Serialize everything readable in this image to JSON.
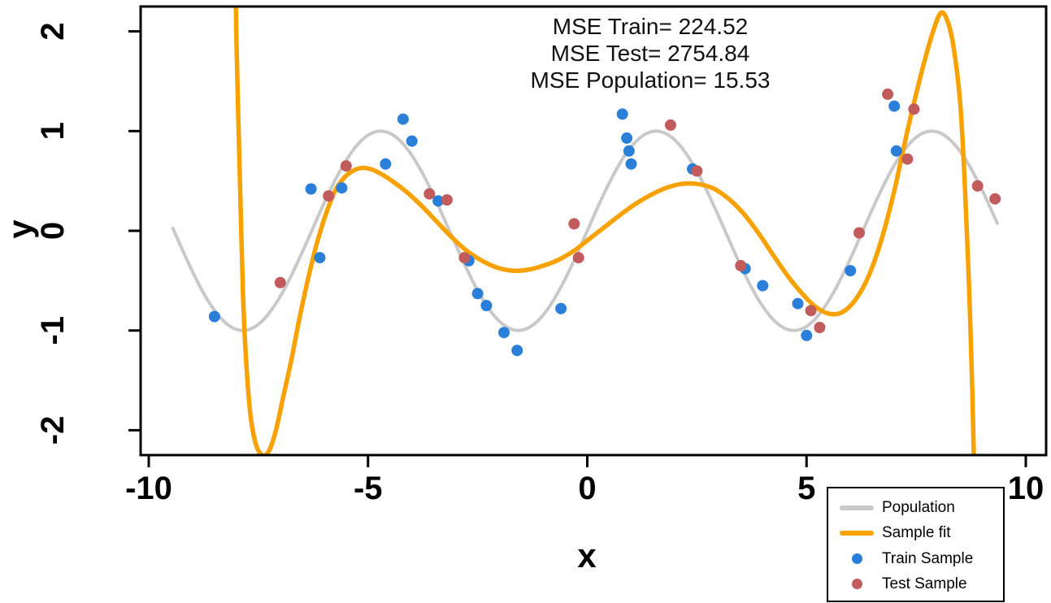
{
  "chart_data": {
    "type": "line+scatter",
    "title": "",
    "xlabel": "x",
    "ylabel": "y",
    "xlim": [
      -10,
      10
    ],
    "ylim": [
      -2.25,
      2.25
    ],
    "xticks": [
      -10,
      -5,
      0,
      5,
      10
    ],
    "yticks": [
      -2,
      -1,
      0,
      1,
      2
    ],
    "grid": false,
    "legend_position": "bottom-right",
    "annotations": [
      "MSE Train= 224.52",
      "MSE Test= 2754.84",
      "MSE Population= 15.53"
    ],
    "colors": {
      "population": "#c9c9c9",
      "sample_fit": "#f7a200",
      "train": "#2a7fd9",
      "test": "#c25b5b",
      "axis": "#000000"
    },
    "legend": [
      {
        "label": "Population",
        "swatch": "line",
        "color": "#c9c9c9"
      },
      {
        "label": "Sample fit",
        "swatch": "line",
        "color": "#f7a200"
      },
      {
        "label": "Train Sample",
        "swatch": "point",
        "color": "#2a7fd9"
      },
      {
        "label": "Test Sample",
        "swatch": "point",
        "color": "#c25b5b"
      }
    ],
    "series": [
      {
        "name": "Population",
        "kind": "line",
        "fn": "sin",
        "x_range": [
          -9.45,
          9.4
        ],
        "width": 4,
        "color": "#c9c9c9"
      },
      {
        "name": "Sample fit",
        "kind": "line",
        "width": 5.5,
        "color": "#f7a200",
        "points": [
          [
            -8.05,
            3.2
          ],
          [
            -8.0,
            1.9
          ],
          [
            -7.95,
            1.0
          ],
          [
            -7.9,
            0.15
          ],
          [
            -7.85,
            -0.65
          ],
          [
            -7.78,
            -1.3
          ],
          [
            -7.68,
            -1.85
          ],
          [
            -7.55,
            -2.15
          ],
          [
            -7.4,
            -2.25
          ],
          [
            -7.25,
            -2.2
          ],
          [
            -7.1,
            -2.0
          ],
          [
            -6.95,
            -1.7
          ],
          [
            -6.75,
            -1.3
          ],
          [
            -6.55,
            -0.85
          ],
          [
            -6.35,
            -0.45
          ],
          [
            -6.15,
            -0.1
          ],
          [
            -5.95,
            0.18
          ],
          [
            -5.75,
            0.4
          ],
          [
            -5.55,
            0.53
          ],
          [
            -5.35,
            0.6
          ],
          [
            -5.15,
            0.63
          ],
          [
            -4.95,
            0.62
          ],
          [
            -4.7,
            0.57
          ],
          [
            -4.45,
            0.5
          ],
          [
            -4.15,
            0.4
          ],
          [
            -3.8,
            0.26
          ],
          [
            -3.45,
            0.1
          ],
          [
            -3.1,
            -0.06
          ],
          [
            -2.75,
            -0.2
          ],
          [
            -2.4,
            -0.3
          ],
          [
            -2.05,
            -0.37
          ],
          [
            -1.7,
            -0.4
          ],
          [
            -1.35,
            -0.39
          ],
          [
            -1.0,
            -0.35
          ],
          [
            -0.65,
            -0.29
          ],
          [
            -0.3,
            -0.2
          ],
          [
            0.05,
            -0.08
          ],
          [
            0.4,
            0.04
          ],
          [
            0.75,
            0.16
          ],
          [
            1.1,
            0.27
          ],
          [
            1.45,
            0.36
          ],
          [
            1.8,
            0.43
          ],
          [
            2.15,
            0.47
          ],
          [
            2.5,
            0.47
          ],
          [
            2.85,
            0.43
          ],
          [
            3.2,
            0.33
          ],
          [
            3.55,
            0.18
          ],
          [
            3.9,
            -0.02
          ],
          [
            4.25,
            -0.25
          ],
          [
            4.6,
            -0.47
          ],
          [
            4.9,
            -0.63
          ],
          [
            5.2,
            -0.76
          ],
          [
            5.5,
            -0.83
          ],
          [
            5.8,
            -0.82
          ],
          [
            6.1,
            -0.7
          ],
          [
            6.4,
            -0.47
          ],
          [
            6.7,
            -0.1
          ],
          [
            7.0,
            0.4
          ],
          [
            7.3,
            1.0
          ],
          [
            7.6,
            1.55
          ],
          [
            7.85,
            1.95
          ],
          [
            8.05,
            2.18
          ],
          [
            8.2,
            2.12
          ],
          [
            8.35,
            1.85
          ],
          [
            8.5,
            1.3
          ],
          [
            8.6,
            0.55
          ],
          [
            8.7,
            -0.5
          ],
          [
            8.78,
            -1.6
          ],
          [
            8.85,
            -3.0
          ]
        ]
      },
      {
        "name": "Train Sample",
        "kind": "scatter",
        "radius": 7,
        "color": "#2a7fd9",
        "points": [
          [
            -8.5,
            -0.86
          ],
          [
            -6.3,
            0.42
          ],
          [
            -6.1,
            -0.27
          ],
          [
            -5.6,
            0.43
          ],
          [
            -4.6,
            0.67
          ],
          [
            -4.2,
            1.12
          ],
          [
            -4.0,
            0.9
          ],
          [
            -3.4,
            0.3
          ],
          [
            -2.7,
            -0.3
          ],
          [
            -2.5,
            -0.63
          ],
          [
            -2.3,
            -0.75
          ],
          [
            -1.9,
            -1.02
          ],
          [
            -1.6,
            -1.2
          ],
          [
            -0.6,
            -0.78
          ],
          [
            0.8,
            1.17
          ],
          [
            0.9,
            0.93
          ],
          [
            0.95,
            0.8
          ],
          [
            1.0,
            0.67
          ],
          [
            2.4,
            0.62
          ],
          [
            3.6,
            -0.38
          ],
          [
            4.0,
            -0.55
          ],
          [
            4.8,
            -0.73
          ],
          [
            5.0,
            -1.05
          ],
          [
            6.0,
            -0.4
          ],
          [
            7.0,
            1.25
          ],
          [
            7.05,
            0.8
          ]
        ]
      },
      {
        "name": "Test Sample",
        "kind": "scatter",
        "radius": 7,
        "color": "#c25b5b",
        "points": [
          [
            -7.0,
            -0.52
          ],
          [
            -5.9,
            0.35
          ],
          [
            -5.5,
            0.65
          ],
          [
            -3.6,
            0.37
          ],
          [
            -3.2,
            0.31
          ],
          [
            -2.8,
            -0.27
          ],
          [
            -0.3,
            0.07
          ],
          [
            -0.2,
            -0.27
          ],
          [
            1.9,
            1.06
          ],
          [
            2.5,
            0.6
          ],
          [
            3.5,
            -0.35
          ],
          [
            5.1,
            -0.8
          ],
          [
            5.3,
            -0.97
          ],
          [
            6.2,
            -0.02
          ],
          [
            6.85,
            1.37
          ],
          [
            7.45,
            1.22
          ],
          [
            7.3,
            0.72
          ],
          [
            8.9,
            0.45
          ],
          [
            9.3,
            0.32
          ]
        ]
      }
    ]
  }
}
